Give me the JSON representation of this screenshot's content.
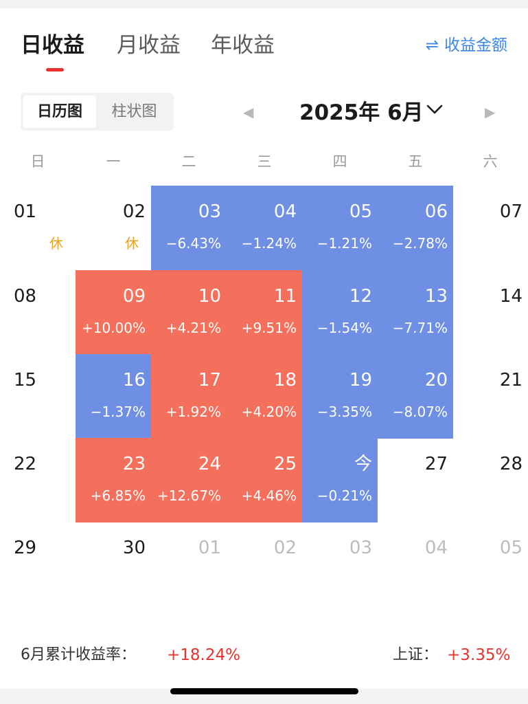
{
  "tabs": [
    {
      "label": "日收益",
      "active": true
    },
    {
      "label": "月收益",
      "active": false
    },
    {
      "label": "年收益",
      "active": false
    }
  ],
  "switch_link": {
    "icon": "swap-arrows-icon",
    "glyph": "⇌",
    "label": "收益金额"
  },
  "view_toggle": [
    {
      "label": "日历图",
      "active": true
    },
    {
      "label": "柱状图",
      "active": false
    }
  ],
  "month_nav": {
    "title": "2025年 6月",
    "prev_icon": "triangle-left-icon",
    "prev_glyph": "◀",
    "next_icon": "triangle-right-icon",
    "next_glyph": "▶",
    "dropdown_icon": "chevron-down-icon"
  },
  "weekdays": [
    "日",
    "一",
    "二",
    "三",
    "四",
    "五",
    "六"
  ],
  "calendar": [
    [
      {
        "day": "01",
        "badge": "休"
      },
      {
        "day": "02",
        "badge": "休"
      },
      {
        "day": "03",
        "value": "−6.43%",
        "tone": "down"
      },
      {
        "day": "04",
        "value": "−1.24%",
        "tone": "down"
      },
      {
        "day": "05",
        "value": "−1.21%",
        "tone": "down"
      },
      {
        "day": "06",
        "value": "−2.78%",
        "tone": "down"
      },
      {
        "day": "07"
      }
    ],
    [
      {
        "day": "08"
      },
      {
        "day": "09",
        "value": "+10.00%",
        "tone": "up"
      },
      {
        "day": "10",
        "value": "+4.21%",
        "tone": "up"
      },
      {
        "day": "11",
        "value": "+9.51%",
        "tone": "up"
      },
      {
        "day": "12",
        "value": "−1.54%",
        "tone": "down"
      },
      {
        "day": "13",
        "value": "−7.71%",
        "tone": "down"
      },
      {
        "day": "14"
      }
    ],
    [
      {
        "day": "15"
      },
      {
        "day": "16",
        "value": "−1.37%",
        "tone": "down"
      },
      {
        "day": "17",
        "value": "+1.92%",
        "tone": "up"
      },
      {
        "day": "18",
        "value": "+4.20%",
        "tone": "up"
      },
      {
        "day": "19",
        "value": "−3.35%",
        "tone": "down"
      },
      {
        "day": "20",
        "value": "−8.07%",
        "tone": "down"
      },
      {
        "day": "21"
      }
    ],
    [
      {
        "day": "22"
      },
      {
        "day": "23",
        "value": "+6.85%",
        "tone": "up"
      },
      {
        "day": "24",
        "value": "+12.67%",
        "tone": "up"
      },
      {
        "day": "25",
        "value": "+4.46%",
        "tone": "up"
      },
      {
        "day": "今",
        "value": "−0.21%",
        "tone": "down"
      },
      {
        "day": "27"
      },
      {
        "day": "28"
      }
    ],
    [
      {
        "day": "29"
      },
      {
        "day": "30"
      },
      {
        "day": "01",
        "other_month": true
      },
      {
        "day": "02",
        "other_month": true
      },
      {
        "day": "03",
        "other_month": true
      },
      {
        "day": "04",
        "other_month": true
      },
      {
        "day": "05",
        "other_month": true
      }
    ]
  ],
  "summary": {
    "label": "6月累计收益率：",
    "value": "+18.24%"
  },
  "index": {
    "label": "上证：",
    "value": "+3.35%"
  },
  "colors": {
    "up": "#f5705c",
    "down": "#6f8fe4",
    "accent_red": "#e5342f",
    "link_blue": "#3c86e6",
    "holiday": "#e8a21f"
  }
}
